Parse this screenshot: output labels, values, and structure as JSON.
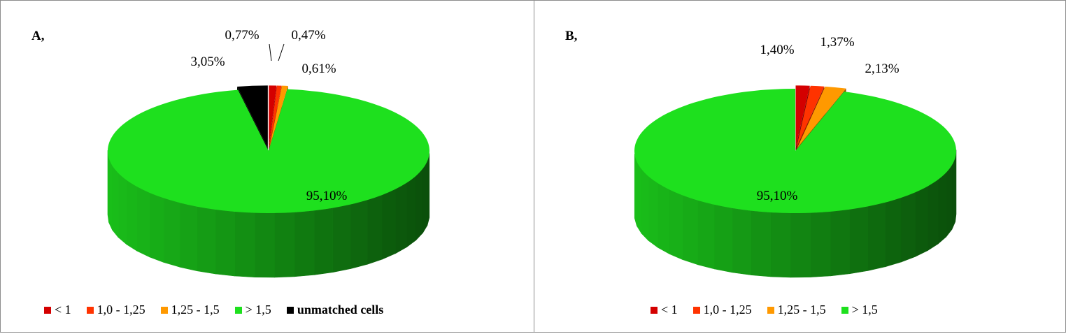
{
  "chart_data": [
    {
      "type": "pie",
      "panel_label": "A,",
      "slices": [
        {
          "name": "< 1",
          "value": 0.77,
          "label": "0,77%",
          "color": "#d40000"
        },
        {
          "name": "1,0 - 1,25",
          "value": 0.47,
          "label": "0,47%",
          "color": "#ff3300"
        },
        {
          "name": "1,25 - 1,5",
          "value": 0.61,
          "label": "0,61%",
          "color": "#ff9900"
        },
        {
          "name": "> 1,5",
          "value": 95.1,
          "label": "95,10%",
          "color": "#1ee01e"
        },
        {
          "name": "unmatched cells",
          "value": 3.05,
          "label": "3,05%",
          "color": "#000000"
        }
      ],
      "legend": [
        "< 1",
        "1,0 - 1,25",
        "1,25 - 1,5",
        "> 1,5",
        "unmatched cells"
      ],
      "legend_position": "bottom",
      "style": "3d-exploded"
    },
    {
      "type": "pie",
      "panel_label": "B,",
      "slices": [
        {
          "name": "< 1",
          "value": 1.4,
          "label": "1,40%",
          "color": "#d40000"
        },
        {
          "name": "1,0 - 1,25",
          "value": 1.37,
          "label": "1,37%",
          "color": "#ff3300"
        },
        {
          "name": "1,25 - 1,5",
          "value": 2.13,
          "label": "2,13%",
          "color": "#ff9900"
        },
        {
          "name": "> 1,5",
          "value": 95.1,
          "label": "95,10%",
          "color": "#1ee01e"
        }
      ],
      "legend": [
        "< 1",
        "1,0 - 1,25",
        "1,25 - 1,5",
        "> 1,5"
      ],
      "legend_position": "bottom",
      "style": "3d-exploded"
    }
  ]
}
